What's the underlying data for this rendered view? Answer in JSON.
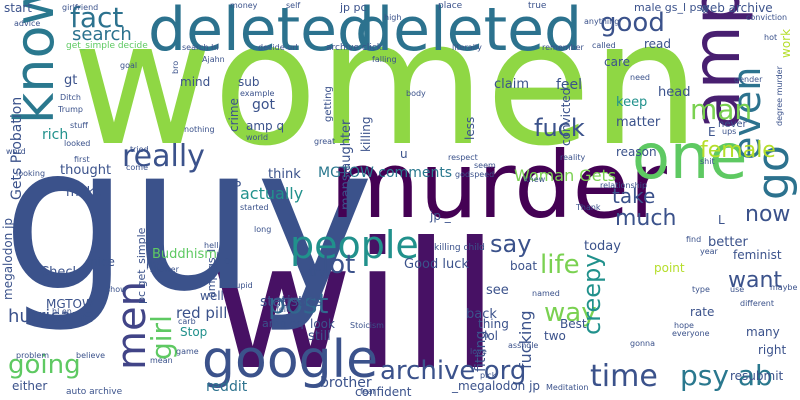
{
  "words": [
    {
      "text": "women",
      "color": "#8fd744"
    },
    {
      "text": "will",
      "color": "#471164"
    },
    {
      "text": "guy",
      "color": "#3b528b"
    },
    {
      "text": "murder",
      "color": "#440154"
    },
    {
      "text": "deleted",
      "color": "#2c728e"
    },
    {
      "text": "deleted",
      "color": "#2c728e"
    },
    {
      "text": "google",
      "color": "#3b528b"
    },
    {
      "text": "know",
      "color": "#2a788e"
    },
    {
      "text": "one",
      "color": "#5ec962"
    },
    {
      "text": "amp",
      "color": "#481f70"
    },
    {
      "text": "people",
      "color": "#21918c"
    },
    {
      "text": "men",
      "color": "#414487"
    },
    {
      "text": "post",
      "color": "#31688e"
    },
    {
      "text": "archive org",
      "color": "#3b528b"
    },
    {
      "text": "time",
      "color": "#3b528b"
    },
    {
      "text": "psy ab",
      "color": "#2a788e"
    },
    {
      "text": "even",
      "color": "#2c728e"
    },
    {
      "text": "really",
      "color": "#3b528b"
    },
    {
      "text": "going",
      "color": "#5ec962"
    },
    {
      "text": "fact",
      "color": "#2c728e"
    },
    {
      "text": "good",
      "color": "#3b528b"
    },
    {
      "text": "go",
      "color": "#2c728e"
    },
    {
      "text": "girl",
      "color": "#5ec962"
    },
    {
      "text": "life",
      "color": "#7ad151"
    },
    {
      "text": "way",
      "color": "#7ad151"
    },
    {
      "text": "fuck",
      "color": "#3b528b"
    },
    {
      "text": "man",
      "color": "#7ad151"
    },
    {
      "text": "lot",
      "color": "#3b528b"
    },
    {
      "text": "say",
      "color": "#3b528b"
    },
    {
      "text": "now",
      "color": "#3b528b"
    },
    {
      "text": "want",
      "color": "#3b528b"
    },
    {
      "text": "creepy",
      "color": "#21918c"
    },
    {
      "text": "female",
      "color": "#b5de2b"
    },
    {
      "text": "much",
      "color": "#3b528b"
    },
    {
      "text": "take",
      "color": "#3b528b"
    },
    {
      "text": "search",
      "color": "#2c728e"
    },
    {
      "text": "Gets Probation",
      "color": "#3b528b"
    },
    {
      "text": "hurricane",
      "color": "#3b528b"
    },
    {
      "text": "MGTOW comments",
      "color": "#2a788e"
    },
    {
      "text": "Woman Gets",
      "color": "#7ad151"
    },
    {
      "text": "actually",
      "color": "#21918c"
    },
    {
      "text": "red pill",
      "color": "#3b528b"
    },
    {
      "text": "statistics",
      "color": "#3b528b"
    },
    {
      "text": "Good luck",
      "color": "#3b528b"
    },
    {
      "text": "reddit",
      "color": "#2c728e"
    },
    {
      "text": "brother",
      "color": "#3b528b"
    },
    {
      "text": "confident",
      "color": "#3b528b"
    },
    {
      "text": "megalodon jp",
      "color": "#3b528b"
    },
    {
      "text": "fucking",
      "color": "#3b528b"
    },
    {
      "text": "fitting",
      "color": "#3b528b"
    },
    {
      "text": "web archive",
      "color": "#3b528b"
    },
    {
      "text": "male gs_l psy",
      "color": "#3b528b"
    },
    {
      "text": "work",
      "color": "#b5de2b"
    },
    {
      "text": "Buddhism",
      "color": "#5ec962"
    },
    {
      "text": "thought",
      "color": "#3b528b"
    },
    {
      "text": "make",
      "color": "#3b528b"
    },
    {
      "text": "think",
      "color": "#3b528b"
    },
    {
      "text": "manslaughter",
      "color": "#3b528b"
    },
    {
      "text": "killing",
      "color": "#3b528b"
    },
    {
      "text": "claim",
      "color": "#3b528b"
    },
    {
      "text": "feel",
      "color": "#3b528b"
    },
    {
      "text": "head",
      "color": "#3b528b"
    },
    {
      "text": "keep",
      "color": "#21918c"
    },
    {
      "text": "matter",
      "color": "#3b528b"
    },
    {
      "text": "reason",
      "color": "#3b528b"
    },
    {
      "text": "care",
      "color": "#3b528b"
    },
    {
      "text": "read",
      "color": "#3b528b"
    },
    {
      "text": "rich",
      "color": "#21918c"
    },
    {
      "text": "gt",
      "color": "#3b528b"
    },
    {
      "text": "mind",
      "color": "#3b528b"
    },
    {
      "text": "got",
      "color": "#3b528b"
    },
    {
      "text": "sub",
      "color": "#3b528b"
    },
    {
      "text": "amp q",
      "color": "#3b528b"
    },
    {
      "text": "crime",
      "color": "#3b528b"
    },
    {
      "text": "less",
      "color": "#3b528b"
    },
    {
      "text": "convicted",
      "color": "#3b528b"
    },
    {
      "text": "Check",
      "color": "#3b528b"
    },
    {
      "text": "nice",
      "color": "#3b528b"
    },
    {
      "text": "live",
      "color": "#3b528b"
    },
    {
      "text": "well",
      "color": "#3b528b"
    },
    {
      "text": "try",
      "color": "#3b528b"
    },
    {
      "text": "look",
      "color": "#3b528b"
    },
    {
      "text": "still",
      "color": "#3b528b"
    },
    {
      "text": "see",
      "color": "#3b528b"
    },
    {
      "text": "back",
      "color": "#3b528b"
    },
    {
      "text": "boat",
      "color": "#3b528b"
    },
    {
      "text": "today",
      "color": "#3b528b"
    },
    {
      "text": "better",
      "color": "#3b528b"
    },
    {
      "text": "point",
      "color": "#b5de2b"
    },
    {
      "text": "feminist",
      "color": "#3b528b"
    },
    {
      "text": "thing",
      "color": "#3b528b"
    },
    {
      "text": "lol",
      "color": "#3b528b"
    },
    {
      "text": "two",
      "color": "#3b528b"
    },
    {
      "text": "rate",
      "color": "#3b528b"
    },
    {
      "text": "many",
      "color": "#3b528b"
    },
    {
      "text": "right",
      "color": "#3b528b"
    },
    {
      "text": "Stop",
      "color": "#21918c"
    },
    {
      "text": "MGTOW",
      "color": "#3b528b"
    },
    {
      "text": "either",
      "color": "#3b528b"
    },
    {
      "text": "resubmit",
      "color": "#3b528b"
    },
    {
      "text": "start",
      "color": "#3b528b"
    },
    {
      "text": "jp pc",
      "color": "#3b528b"
    },
    {
      "text": "u",
      "color": "#3b528b"
    },
    {
      "text": "amp oq",
      "color": "#3b528b"
    },
    {
      "text": "amp gs_l",
      "color": "#3b528b"
    },
    {
      "text": "pc get_simple",
      "color": "#3b528b"
    },
    {
      "text": "Best",
      "color": "#3b528b"
    },
    {
      "text": "auto archive",
      "color": "#3b528b"
    },
    {
      "text": "_megalodon jp",
      "color": "#3b528b"
    },
    {
      "text": "archive click",
      "color": "#3b528b"
    },
    {
      "text": "search hl",
      "color": "#3b528b"
    },
    {
      "text": "decide url",
      "color": "#3b528b"
    },
    {
      "text": "get_simple decide",
      "color": "#5ec962"
    },
    {
      "text": "killing child",
      "color": "#3b528b"
    },
    {
      "text": "degree murder",
      "color": "#3b528b"
    },
    {
      "text": "girlfriend",
      "color": "#3b528b"
    },
    {
      "text": "advice",
      "color": "#3b528b"
    },
    {
      "text": "Trump",
      "color": "#3b528b"
    },
    {
      "text": "bro",
      "color": "#3b528b"
    },
    {
      "text": "goal",
      "color": "#3b528b"
    },
    {
      "text": "money",
      "color": "#3b528b"
    },
    {
      "text": "self",
      "color": "#3b528b"
    },
    {
      "text": "place",
      "color": "#3b528b"
    },
    {
      "text": "true",
      "color": "#3b528b"
    },
    {
      "text": "high",
      "color": "#3b528b"
    },
    {
      "text": "called",
      "color": "#3b528b"
    },
    {
      "text": "literally",
      "color": "#3b528b"
    },
    {
      "text": "remember",
      "color": "#3b528b"
    },
    {
      "text": "anything",
      "color": "#3b528b"
    },
    {
      "text": "conviction",
      "color": "#3b528b"
    },
    {
      "text": "need",
      "color": "#3b528b"
    },
    {
      "text": "gender",
      "color": "#3b528b"
    },
    {
      "text": "shit",
      "color": "#3b528b"
    },
    {
      "text": "ups",
      "color": "#3b528b"
    },
    {
      "text": "never",
      "color": "#3b528b"
    },
    {
      "text": "E",
      "color": "#3b528b"
    },
    {
      "text": "tried",
      "color": "#3b528b"
    },
    {
      "text": "first",
      "color": "#3b528b"
    },
    {
      "text": "word",
      "color": "#3b528b"
    },
    {
      "text": "looking",
      "color": "#3b528b"
    },
    {
      "text": "looked",
      "color": "#3b528b"
    },
    {
      "text": "stuff",
      "color": "#3b528b"
    },
    {
      "text": "world",
      "color": "#3b528b"
    },
    {
      "text": "Ajahn",
      "color": "#3b528b"
    },
    {
      "text": "example",
      "color": "#3b528b"
    },
    {
      "text": "getting",
      "color": "#3b528b"
    },
    {
      "text": "falling",
      "color": "#3b528b"
    },
    {
      "text": "body",
      "color": "#3b528b"
    },
    {
      "text": "great",
      "color": "#3b528b"
    },
    {
      "text": "respect",
      "color": "#3b528b"
    },
    {
      "text": "seem",
      "color": "#3b528b"
    },
    {
      "text": "godspeed",
      "color": "#3b528b"
    },
    {
      "text": "knew",
      "color": "#3b528b"
    },
    {
      "text": "reality",
      "color": "#3b528b"
    },
    {
      "text": "relationship",
      "color": "#3b528b"
    },
    {
      "text": "Thank",
      "color": "#3b528b"
    },
    {
      "text": "find",
      "color": "#3b528b"
    },
    {
      "text": "year",
      "color": "#3b528b"
    },
    {
      "text": "maybe",
      "color": "#3b528b"
    },
    {
      "text": "type",
      "color": "#3b528b"
    },
    {
      "text": "use",
      "color": "#3b528b"
    },
    {
      "text": "different",
      "color": "#3b528b"
    },
    {
      "text": "hope",
      "color": "#3b528b"
    },
    {
      "text": "everyone",
      "color": "#3b528b"
    },
    {
      "text": "gonna",
      "color": "#3b528b"
    },
    {
      "text": "love",
      "color": "#3b528b"
    },
    {
      "text": "Meditation",
      "color": "#3b528b"
    },
    {
      "text": "named",
      "color": "#3b528b"
    },
    {
      "text": "Stoicism",
      "color": "#3b528b"
    },
    {
      "text": "asshole",
      "color": "#3b528b"
    },
    {
      "text": "hell",
      "color": "#3b528b"
    },
    {
      "text": "long",
      "color": "#3b528b"
    },
    {
      "text": "started",
      "color": "#3b528b"
    },
    {
      "text": "shower",
      "color": "#3b528b"
    },
    {
      "text": "show",
      "color": "#3b528b"
    },
    {
      "text": "stupid",
      "color": "#3b528b"
    },
    {
      "text": "name",
      "color": "#3b528b"
    },
    {
      "text": "felt",
      "color": "#3b528b"
    },
    {
      "text": "carb",
      "color": "#3b528b"
    },
    {
      "text": "mean",
      "color": "#3b528b"
    },
    {
      "text": "game",
      "color": "#3b528b"
    },
    {
      "text": "believe",
      "color": "#3b528b"
    },
    {
      "text": "problem",
      "color": "#3b528b"
    },
    {
      "text": "hl en",
      "color": "#3b528b"
    },
    {
      "text": "pick",
      "color": "#3b528b"
    },
    {
      "text": "fear",
      "color": "#3b528b"
    },
    {
      "text": "nothing",
      "color": "#3b528b"
    },
    {
      "text": "come",
      "color": "#3b528b"
    },
    {
      "text": "Oh",
      "color": "#3b528b"
    },
    {
      "text": "hot",
      "color": "#3b528b"
    },
    {
      "text": "jp _",
      "color": "#3b528b"
    },
    {
      "text": "L",
      "color": "#3b528b"
    },
    {
      "text": "P",
      "color": "#3b528b"
    },
    {
      "text": "Ditch",
      "color": "#3b528b"
    }
  ]
}
